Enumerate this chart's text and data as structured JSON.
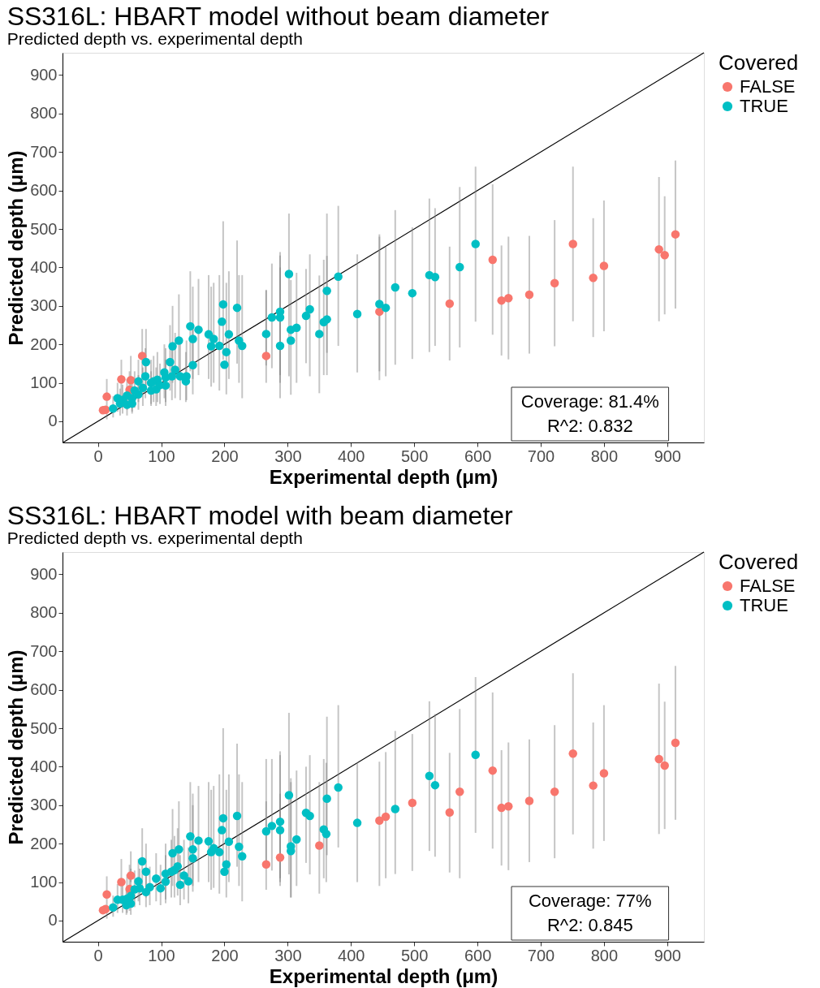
{
  "chart_data": [
    {
      "type": "scatter",
      "title": "SS316L: HBART model without beam diameter",
      "subtitle": "Predicted depth vs. experimental depth",
      "xlabel": "Experimental depth (μm)",
      "ylabel": "Predicted depth (μm)",
      "legend_title": "Covered",
      "legend": "right",
      "marker": "circle",
      "xlim": [
        -56,
        958
      ],
      "ylim": [
        -55,
        958
      ],
      "xticks": [
        0,
        100,
        200,
        300,
        400,
        500,
        600,
        700,
        800,
        900
      ],
      "yticks": [
        0,
        100,
        200,
        300,
        400,
        500,
        600,
        700,
        800,
        900
      ],
      "annotations": [
        "Coverage: 81.4%",
        "R^2: 0.832"
      ],
      "series": [
        {
          "type": "line",
          "color": "#000000",
          "marker": "none",
          "x": [
            -55,
            958
          ],
          "values": [
            -55,
            958
          ]
        },
        {
          "name": "FALSE",
          "color": "#f8766d",
          "x": [
            8,
            12,
            14,
            37,
            50,
            52,
            70,
            266,
            445,
            556,
            624,
            638,
            649,
            682,
            722,
            751,
            783,
            800,
            887,
            896,
            913
          ],
          "values": [
            29,
            30,
            64,
            109,
            82,
            107,
            170,
            170,
            285,
            306,
            420,
            314,
            320,
            329,
            359,
            461,
            373,
            404,
            447,
            432,
            486
          ],
          "errors": [
            null,
            null,
            [
              5,
              110
            ],
            [
              60,
              160
            ],
            [
              40,
              130
            ],
            [
              60,
              170
            ],
            [
              110,
              240
            ],
            [
              100,
              340
            ],
            [
              107,
              486
            ],
            [
              158,
              454
            ],
            [
              225,
              616
            ],
            [
              171,
              457
            ],
            [
              161,
              480
            ],
            [
              176,
              482
            ],
            [
              195,
              523
            ],
            [
              260,
              662
            ],
            [
              219,
              528
            ],
            [
              234,
              574
            ],
            [
              260,
              635
            ],
            [
              278,
              585
            ],
            [
              293,
              678
            ]
          ]
        },
        {
          "name": "TRUE",
          "color": "#00bfc4",
          "x": [
            24,
            31,
            35,
            39,
            46,
            46,
            54,
            54,
            58,
            64,
            64,
            71,
            75,
            76,
            84,
            84,
            88,
            92,
            94,
            98,
            105,
            107,
            107,
            114,
            117,
            118,
            122,
            128,
            130,
            139,
            140,
            146,
            150,
            150,
            159,
            175,
            179,
            183,
            192,
            196,
            198,
            200,
            203,
            207,
            220,
            223,
            228,
            266,
            275,
            288,
            288,
            288,
            302,
            305,
            305,
            314,
            329,
            335,
            350,
            357,
            362,
            362,
            380,
            410,
            445,
            455,
            470,
            497,
            524,
            533,
            572,
            597
          ],
          "values": [
            33,
            60,
            46,
            56,
            67,
            43,
            60,
            46,
            80,
            70,
            104,
            87,
            117,
            154,
            100,
            80,
            104,
            83,
            108,
            94,
            127,
            114,
            93,
            154,
            117,
            195,
            134,
            210,
            117,
            104,
            117,
            247,
            214,
            146,
            238,
            226,
            195,
            214,
            196,
            259,
            304,
            147,
            180,
            226,
            295,
            210,
            196,
            227,
            270,
            196,
            270,
            285,
            383,
            210,
            238,
            243,
            274,
            291,
            227,
            258,
            265,
            339,
            376,
            279,
            305,
            295,
            348,
            333,
            380,
            375,
            401,
            461
          ],
          "errors": [
            [
              10,
              65
            ],
            [
              25,
              100
            ],
            [
              15,
              85
            ],
            [
              20,
              95
            ],
            [
              30,
              110
            ],
            [
              15,
              80
            ],
            [
              25,
              105
            ],
            [
              20,
              90
            ],
            [
              35,
              130
            ],
            [
              30,
              120
            ],
            [
              50,
              160
            ],
            [
              40,
              140
            ],
            [
              60,
              190
            ],
            [
              80,
              240
            ],
            [
              45,
              160
            ],
            [
              40,
              130
            ],
            [
              50,
              170
            ],
            [
              40,
              140
            ],
            [
              50,
              180
            ],
            [
              45,
              150
            ],
            [
              60,
              200
            ],
            [
              50,
              190
            ],
            [
              40,
              160
            ],
            [
              80,
              250
            ],
            [
              55,
              190
            ],
            [
              100,
              300
            ],
            [
              60,
              230
            ],
            [
              110,
              330
            ],
            [
              55,
              200
            ],
            [
              50,
              180
            ],
            [
              55,
              210
            ],
            [
              130,
              390
            ],
            [
              110,
              350
            ],
            [
              70,
              250
            ],
            [
              120,
              370
            ],
            [
              110,
              380
            ],
            [
              90,
              350
            ],
            [
              100,
              360
            ],
            [
              80,
              380
            ],
            null,
            [
              160,
              520
            ],
            null,
            [
              70,
              360
            ],
            [
              110,
              390
            ],
            [
              150,
              470
            ],
            [
              100,
              380
            ],
            [
              60,
              380
            ],
            [
              145,
              342
            ],
            [
              138,
              410
            ],
            [
              60,
              400
            ],
            [
              100,
              431
            ],
            [
              120,
              440
            ],
            [
              117,
              540
            ],
            [
              69,
              367
            ],
            null,
            [
              100,
              386
            ],
            [
              151,
              396
            ],
            [
              117,
              434
            ],
            [
              73,
              379
            ],
            [
              120,
              420
            ],
            [
              120,
              430
            ],
            [
              178,
              540
            ],
            [
              196,
              560
            ],
            [
              127,
              434
            ],
            [
              130,
              480
            ],
            [
              117,
              454
            ],
            [
              147,
              549
            ],
            [
              162,
              504
            ],
            [
              180,
              579
            ],
            [
              196,
              554
            ],
            [
              192,
              609
            ],
            [
              259,
              662
            ]
          ]
        }
      ]
    },
    {
      "type": "scatter",
      "title": "SS316L: HBART model with beam diameter",
      "subtitle": "Predicted depth vs. experimental depth",
      "xlabel": "Experimental depth (μm)",
      "ylabel": "Predicted depth (μm)",
      "legend_title": "Covered",
      "legend": "right",
      "marker": "circle",
      "xlim": [
        -56,
        958
      ],
      "ylim": [
        -55,
        958
      ],
      "xticks": [
        0,
        100,
        200,
        300,
        400,
        500,
        600,
        700,
        800,
        900
      ],
      "yticks": [
        0,
        100,
        200,
        300,
        400,
        500,
        600,
        700,
        800,
        900
      ],
      "annotations": [
        "Coverage: 77%",
        "R^2: 0.845"
      ],
      "series": [
        {
          "type": "line",
          "color": "#000000",
          "marker": "none",
          "x": [
            -55,
            958
          ],
          "values": [
            -55,
            958
          ]
        },
        {
          "name": "FALSE",
          "color": "#f8766d",
          "x": [
            8,
            12,
            14,
            37,
            50,
            52,
            266,
            288,
            350,
            445,
            455,
            497,
            556,
            572,
            624,
            638,
            649,
            682,
            722,
            751,
            783,
            800,
            887,
            896,
            913
          ],
          "values": [
            27,
            30,
            68,
            100,
            82,
            117,
            146,
            164,
            195,
            260,
            270,
            306,
            281,
            335,
            390,
            293,
            297,
            311,
            335,
            434,
            351,
            383,
            420,
            403,
            462
          ],
          "errors": [
            null,
            null,
            [
              5,
              115
            ],
            [
              55,
              160
            ],
            [
              25,
              145
            ],
            [
              100,
              180
            ],
            [
              80,
              310
            ],
            [
              90,
              330
            ],
            [
              70,
              360
            ],
            [
              90,
              413
            ],
            [
              110,
              438
            ],
            [
              129,
              485
            ],
            [
              125,
              436
            ],
            [
              110,
              550
            ],
            [
              187,
              593
            ],
            [
              143,
              443
            ],
            [
              131,
              463
            ],
            [
              152,
              471
            ],
            [
              162,
              508
            ],
            [
              224,
              643
            ],
            [
              187,
              515
            ],
            [
              207,
              560
            ],
            [
              225,
              616
            ],
            [
              238,
              569
            ],
            [
              262,
              662
            ]
          ]
        },
        {
          "name": "TRUE",
          "color": "#00bfc4",
          "x": [
            24,
            31,
            39,
            45,
            46,
            52,
            52,
            58,
            64,
            66,
            70,
            76,
            76,
            82,
            92,
            99,
            107,
            107,
            116,
            118,
            121,
            126,
            128,
            130,
            136,
            143,
            146,
            150,
            150,
            159,
            175,
            179,
            183,
            192,
            196,
            198,
            200,
            203,
            207,
            220,
            223,
            228,
            266,
            275,
            288,
            288,
            302,
            305,
            305,
            314,
            329,
            335,
            357,
            361,
            362,
            380,
            410,
            470,
            524,
            533,
            597
          ],
          "values": [
            34,
            54,
            54,
            40,
            57,
            64,
            44,
            81,
            102,
            84,
            154,
            74,
            127,
            87,
            109,
            84,
            122,
            101,
            127,
            175,
            131,
            141,
            185,
            93,
            117,
            102,
            219,
            185,
            162,
            208,
            206,
            178,
            188,
            178,
            235,
            266,
            127,
            146,
            205,
            272,
            192,
            167,
            232,
            246,
            235,
            257,
            326,
            181,
            193,
            211,
            280,
            272,
            237,
            225,
            317,
            346,
            254,
            290,
            376,
            352,
            431
          ],
          "errors": [
            [
              10,
              65
            ],
            [
              20,
              95
            ],
            [
              20,
              95
            ],
            [
              15,
              80
            ],
            [
              20,
              120
            ],
            [
              35,
              135
            ],
            [
              15,
              85
            ],
            [
              35,
              130
            ],
            [
              50,
              160
            ],
            [
              40,
              135
            ],
            [
              80,
              240
            ],
            [
              35,
              125
            ],
            [
              60,
              200
            ],
            [
              40,
              140
            ],
            [
              50,
              175
            ],
            [
              40,
              145
            ],
            [
              55,
              200
            ],
            [
              45,
              170
            ],
            [
              60,
              210
            ],
            [
              90,
              290
            ],
            [
              60,
              220
            ],
            [
              65,
              240
            ],
            [
              95,
              310
            ],
            [
              40,
              170
            ],
            [
              55,
              210
            ],
            [
              45,
              190
            ],
            [
              110,
              360
            ],
            [
              90,
              330
            ],
            [
              75,
              300
            ],
            [
              100,
              350
            ],
            [
              100,
              360
            ],
            [
              80,
              340
            ],
            [
              85,
              350
            ],
            [
              70,
              380
            ],
            null,
            [
              140,
              500
            ],
            null,
            [
              60,
              340
            ],
            [
              100,
              380
            ],
            [
              140,
              460
            ],
            [
              90,
              380
            ],
            [
              50,
              360
            ],
            [
              140,
              420
            ],
            [
              130,
              420
            ],
            [
              100,
              430
            ],
            [
              110,
              440
            ],
            [
              120,
              540
            ],
            [
              60,
              360
            ],
            [
              60,
              370
            ],
            [
              90,
              390
            ],
            [
              150,
              400
            ],
            [
              120,
              430
            ],
            [
              110,
              420
            ],
            [
              100,
              410
            ],
            [
              170,
              530
            ],
            [
              190,
              560
            ],
            [
              100,
              411
            ],
            [
              121,
              493
            ],
            [
              181,
              570
            ],
            [
              166,
              537
            ],
            [
              228,
              633
            ]
          ]
        }
      ]
    }
  ]
}
